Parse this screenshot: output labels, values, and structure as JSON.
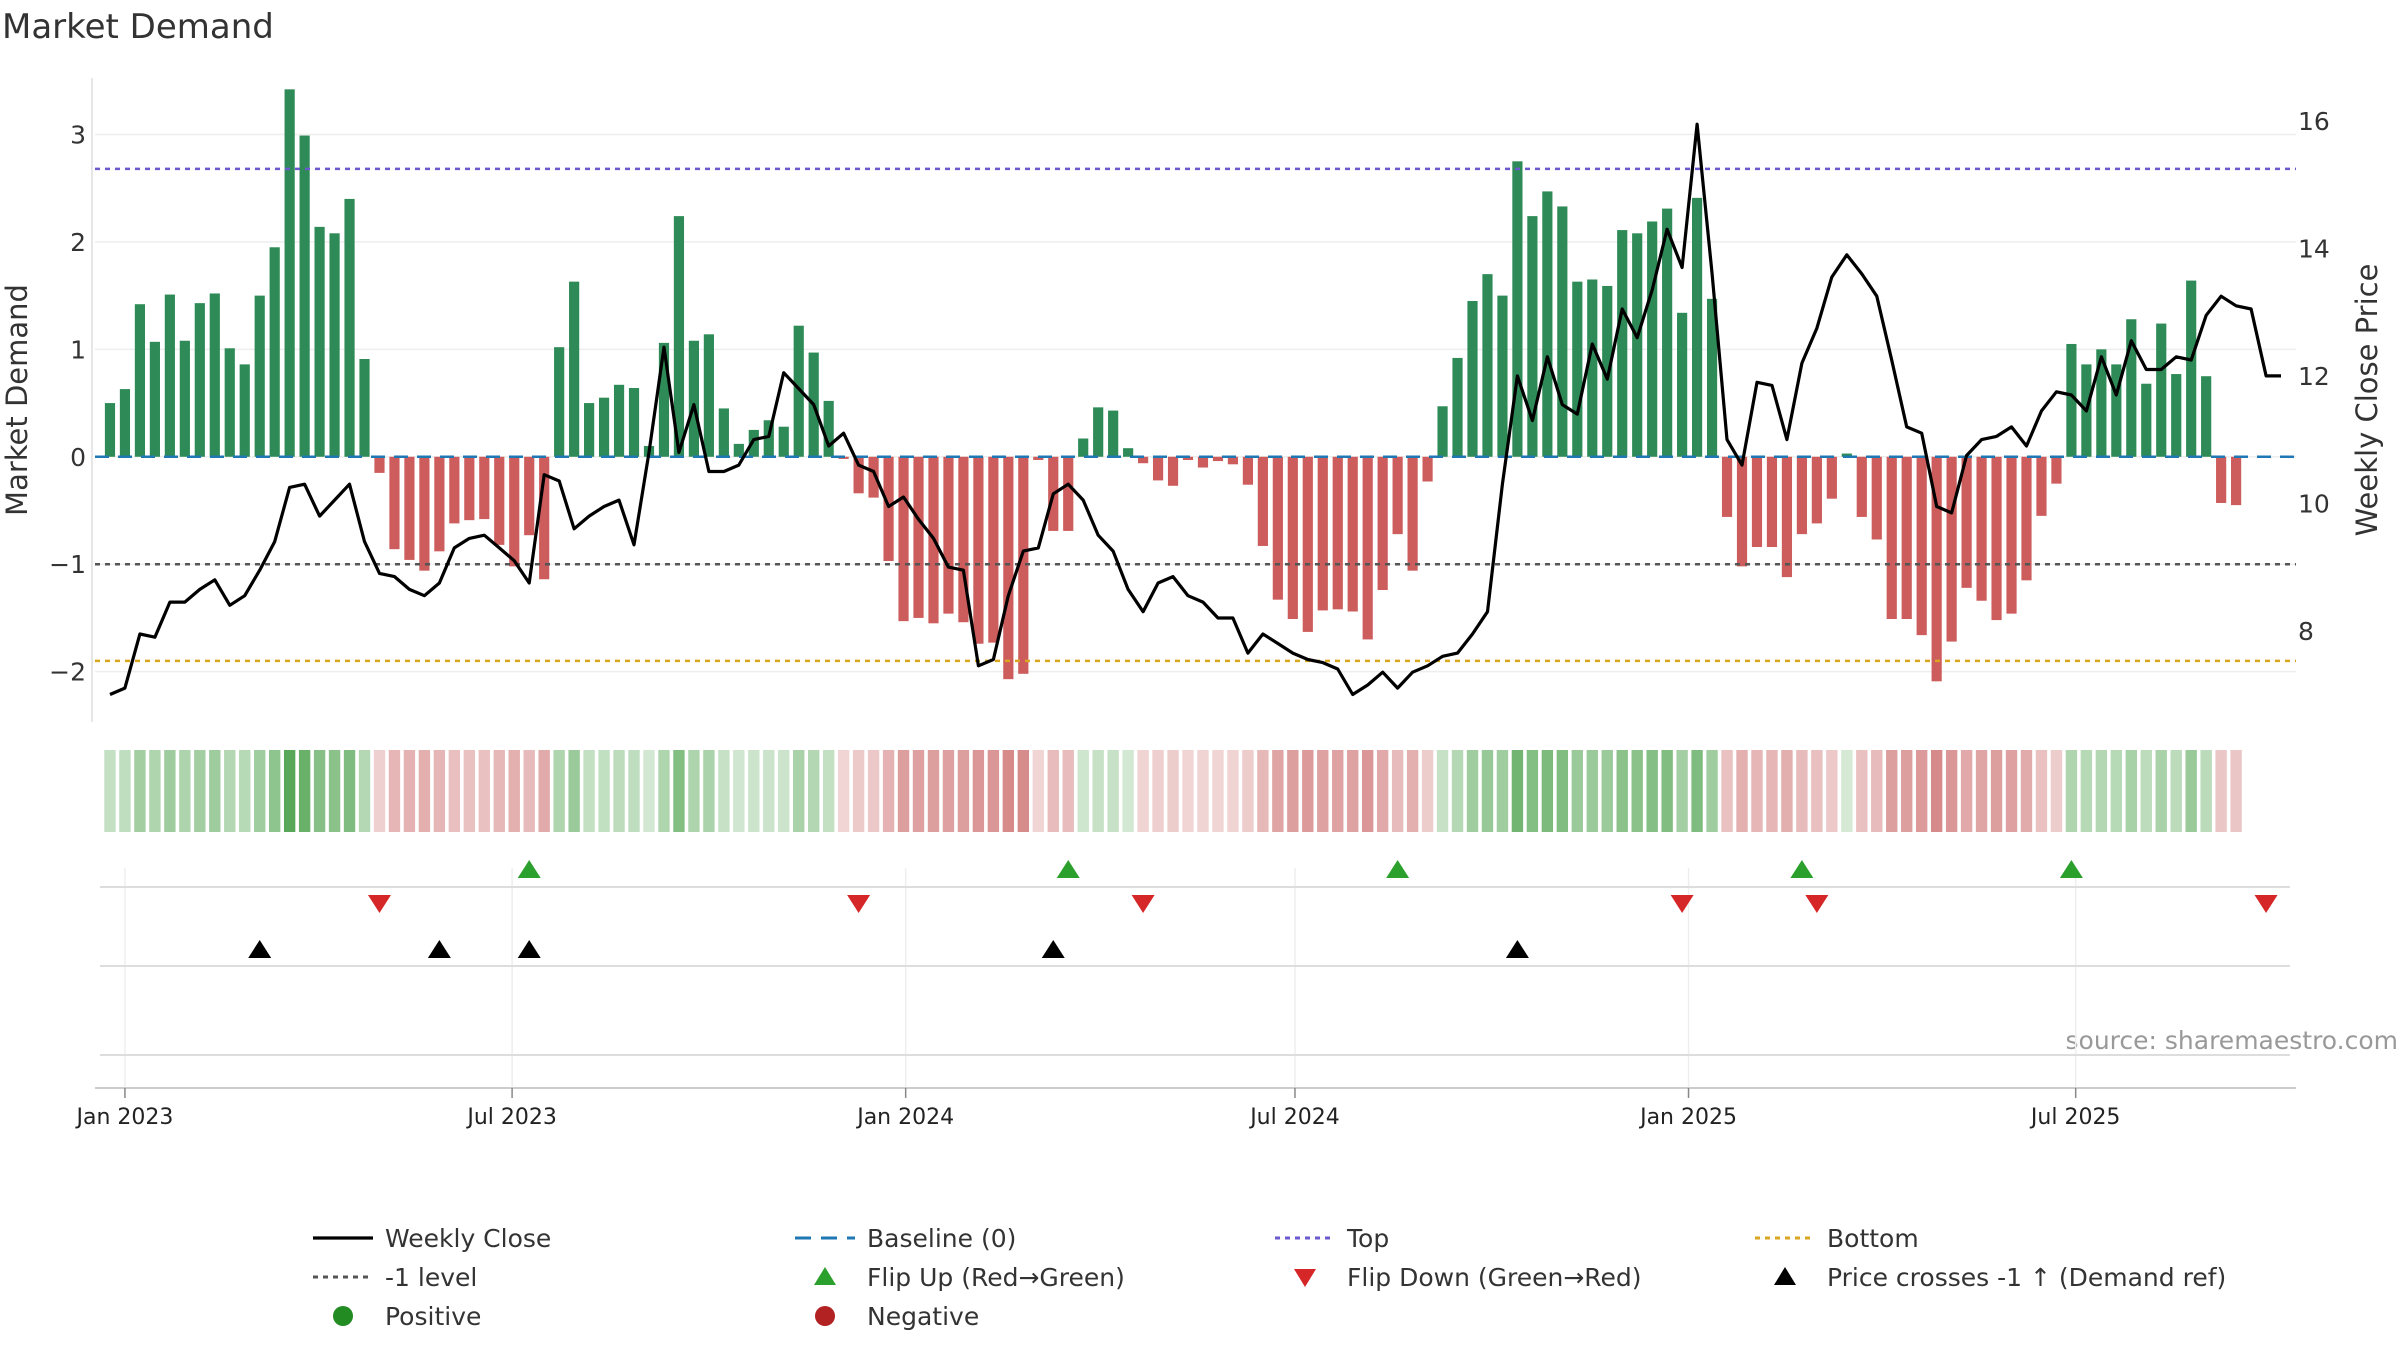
{
  "chart_data": {
    "type": "bar",
    "title": "Market Demand",
    "ylabel_left": "Market Demand",
    "ylabel_right": "Weekly Close Price",
    "source_text": "source: sharemaestro.com",
    "ylim_left": [
      -2.45,
      3.6
    ],
    "ylim_right": [
      6.6,
      16.8
    ],
    "yticks_left": [
      3,
      2,
      1,
      0,
      -1,
      -2
    ],
    "ytick_labels_left": [
      "3",
      "2",
      "1",
      "0",
      "−1",
      "−2"
    ],
    "yticks_right": [
      16,
      14,
      12,
      10,
      8
    ],
    "xticks": [
      {
        "label": "Jan 2023",
        "x": "2023-01-01"
      },
      {
        "label": "Jul 2023",
        "x": "2023-07-01"
      },
      {
        "label": "Jan 2024",
        "x": "2024-01-01"
      },
      {
        "label": "Jul 2024",
        "x": "2024-07-01"
      },
      {
        "label": "Jan 2025",
        "x": "2025-01-01"
      },
      {
        "label": "Jul 2025",
        "x": "2025-07-01"
      }
    ],
    "x_range": [
      "2022-12-18",
      "2025-10-12"
    ],
    "reference_lines": {
      "baseline": 0,
      "top": 2.68,
      "minus1": -1,
      "bottom": -1.9
    },
    "colors": {
      "positive_bar": "#2e8b57",
      "negative_bar": "#cd5c5c",
      "price_line": "#000000",
      "baseline": "#1f77b4",
      "top": "#6a5acd",
      "minus1": "#555555",
      "bottom": "#daa520",
      "flip_up": "#2ca02c",
      "flip_down": "#d62728",
      "cross": "#000000",
      "positive_dot": "#228b22",
      "negative_dot": "#b22222"
    },
    "series": [
      {
        "name": "Market Demand",
        "start_week": "2022-12-25",
        "values": [
          0.5,
          0.63,
          1.42,
          1.07,
          1.51,
          1.08,
          1.43,
          1.52,
          1.01,
          0.86,
          1.5,
          1.95,
          3.42,
          2.99,
          2.14,
          2.08,
          2.4,
          0.91,
          -0.15,
          -0.86,
          -0.96,
          -1.06,
          -0.88,
          -0.62,
          -0.59,
          -0.58,
          -0.82,
          -1.02,
          -0.73,
          -1.14,
          1.02,
          1.63,
          0.5,
          0.55,
          0.67,
          0.64,
          0.1,
          1.06,
          2.24,
          1.08,
          1.14,
          0.45,
          0.12,
          0.25,
          0.34,
          0.28,
          1.22,
          0.97,
          0.52,
          -0.02,
          -0.34,
          -0.38,
          -0.97,
          -1.53,
          -1.5,
          -1.55,
          -1.46,
          -1.54,
          -1.74,
          -1.73,
          -2.07,
          -2.02,
          -0.03,
          -0.69,
          -0.69,
          0.17,
          0.46,
          0.43,
          0.08,
          -0.06,
          -0.22,
          -0.27,
          -0.03,
          -0.1,
          -0.04,
          -0.07,
          -0.26,
          -0.83,
          -1.33,
          -1.51,
          -1.63,
          -1.43,
          -1.42,
          -1.44,
          -1.7,
          -1.24,
          -0.72,
          -1.06,
          -0.23,
          0.47,
          0.92,
          1.45,
          1.7,
          1.5,
          2.75,
          2.24,
          2.47,
          2.33,
          1.63,
          1.65,
          1.59,
          2.11,
          2.08,
          2.19,
          2.31,
          1.34,
          2.41,
          1.47,
          -0.56,
          -1.02,
          -0.84,
          -0.84,
          -1.12,
          -0.72,
          -0.62,
          -0.39,
          0.03,
          -0.56,
          -0.77,
          -1.51,
          -1.51,
          -1.66,
          -2.09,
          -1.72,
          -1.22,
          -1.34,
          -1.52,
          -1.46,
          -1.15,
          -0.55,
          -0.25,
          1.05,
          0.86,
          1.0,
          0.86,
          1.28,
          0.68,
          1.24,
          0.77,
          1.64,
          0.75,
          -0.43,
          -0.45
        ]
      },
      {
        "name": "Weekly Close",
        "start_week": "2022-12-25",
        "values": [
          7.0,
          7.1,
          7.95,
          7.9,
          8.45,
          8.45,
          8.65,
          8.8,
          8.4,
          8.55,
          8.95,
          9.4,
          10.25,
          10.3,
          9.8,
          10.05,
          10.3,
          9.4,
          8.9,
          8.85,
          8.65,
          8.55,
          8.75,
          9.3,
          9.45,
          9.5,
          9.3,
          9.1,
          8.75,
          10.45,
          10.35,
          9.6,
          9.8,
          9.95,
          10.05,
          9.35,
          10.8,
          12.45,
          10.8,
          11.55,
          10.5,
          10.5,
          10.6,
          11.0,
          11.05,
          12.05,
          11.8,
          11.55,
          10.9,
          11.1,
          10.6,
          10.5,
          9.95,
          10.1,
          9.75,
          9.45,
          9.0,
          8.95,
          7.45,
          7.55,
          8.55,
          9.25,
          9.3,
          10.15,
          10.3,
          10.05,
          9.5,
          9.25,
          8.65,
          8.3,
          8.75,
          8.85,
          8.55,
          8.45,
          8.2,
          8.2,
          7.65,
          7.95,
          7.8,
          7.65,
          7.55,
          7.5,
          7.4,
          7.0,
          7.15,
          7.35,
          7.1,
          7.35,
          7.45,
          7.6,
          7.65,
          7.95,
          8.3,
          10.3,
          12.0,
          11.3,
          12.3,
          11.55,
          11.4,
          12.5,
          11.95,
          13.05,
          12.6,
          13.35,
          14.3,
          13.7,
          15.95,
          13.6,
          11.0,
          10.6,
          11.9,
          11.85,
          11.0,
          12.2,
          12.75,
          13.55,
          13.9,
          13.6,
          13.25,
          12.25,
          11.2,
          11.1,
          9.95,
          9.85,
          10.75,
          11.0,
          11.05,
          11.2,
          10.9,
          11.45,
          11.75,
          11.7,
          11.45,
          12.3,
          11.7,
          12.55,
          12.1,
          12.1,
          12.3,
          12.25,
          12.95,
          13.25,
          13.1,
          13.05,
          12.0,
          12.0
        ]
      }
    ],
    "flip_up_dates": [
      "2023-07-09",
      "2024-03-17",
      "2024-08-18",
      "2025-02-23",
      "2025-06-29"
    ],
    "flip_down_dates": [
      "2023-04-30",
      "2023-12-10",
      "2024-04-21",
      "2024-12-29",
      "2025-03-02",
      "2025-09-28"
    ],
    "price_cross_dates": [
      "2023-03-05",
      "2023-05-28",
      "2023-07-09",
      "2024-03-10",
      "2024-10-13"
    ],
    "legend": {
      "location": "bottom",
      "entries": [
        {
          "label": "Weekly Close",
          "marker": "line",
          "color": "#000000"
        },
        {
          "label": "Baseline (0)",
          "marker": "dash",
          "color": "#1f77b4"
        },
        {
          "label": "Top",
          "marker": "dot-line",
          "color": "#6a5acd"
        },
        {
          "label": "Bottom",
          "marker": "dot-line",
          "color": "#daa520"
        },
        {
          "label": "-1 level",
          "marker": "dot-line",
          "color": "#555555"
        },
        {
          "label": "Flip Up (Red→Green)",
          "marker": "triangle-up",
          "color": "#2ca02c"
        },
        {
          "label": "Flip Down (Green→Red)",
          "marker": "triangle-down",
          "color": "#d62728"
        },
        {
          "label": "Price crosses -1 ↑ (Demand ref)",
          "marker": "triangle-up",
          "color": "#000000"
        },
        {
          "label": "Positive",
          "marker": "circle",
          "color": "#228b22"
        },
        {
          "label": "Negative",
          "marker": "circle",
          "color": "#b22222"
        }
      ]
    }
  }
}
